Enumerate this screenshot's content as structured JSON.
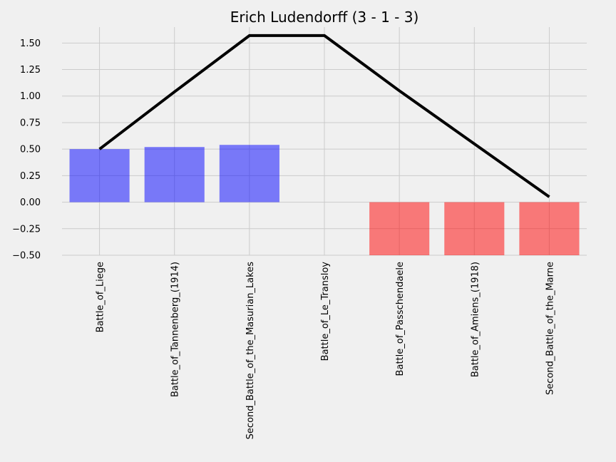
{
  "chart_data": {
    "type": "bar",
    "title": "Erich Ludendorff (3 - 1 - 3)",
    "xlabel": "",
    "ylabel": "",
    "categories": [
      "Battle_of_Liege",
      "Battle_of_Tannenberg_(1914)",
      "Second_Battle_of_the_Masurian_Lakes",
      "Battle_of_Le_Transloy",
      "Battle_of_Passchendaele",
      "Battle_of_Amiens_(1918)",
      "Second_Battle_of_the_Marne"
    ],
    "values": [
      0.5,
      0.52,
      0.54,
      0.0,
      -0.5,
      -0.5,
      -0.5
    ],
    "bar_colors": [
      "#0000ff",
      "#0000ff",
      "#0000ff",
      "#0000ff",
      "#ff0000",
      "#ff0000",
      "#ff0000"
    ],
    "bar_opacity": 0.5,
    "line": {
      "color": "#000000",
      "values": [
        0.5,
        1.04,
        1.57,
        1.57,
        1.05,
        0.55,
        0.05
      ]
    },
    "ylim": [
      -0.5,
      1.65
    ],
    "yticks": [
      -0.5,
      -0.25,
      0.0,
      0.25,
      0.5,
      0.75,
      1.0,
      1.25,
      1.5
    ],
    "ytick_labels": [
      "−0.50",
      "−0.25",
      "0.00",
      "0.25",
      "0.50",
      "0.75",
      "1.00",
      "1.25",
      "1.50"
    ],
    "grid": true,
    "background": "#f0f0f0"
  }
}
